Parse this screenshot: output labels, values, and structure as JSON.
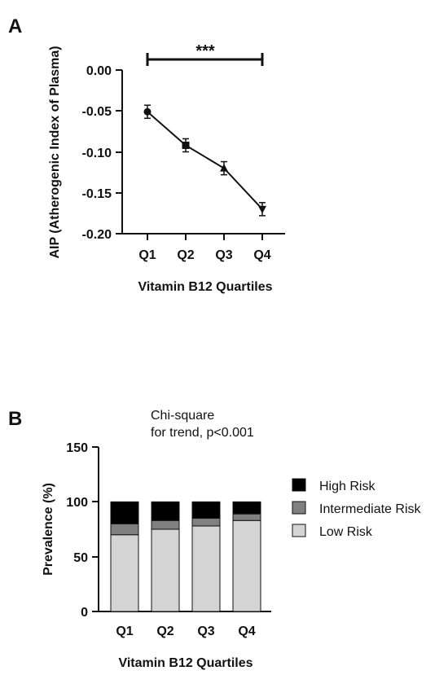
{
  "chart_data": [
    {
      "panel_label": "A",
      "type": "line",
      "categories": [
        "Q1",
        "Q2",
        "Q3",
        "Q4"
      ],
      "values": [
        -0.051,
        -0.092,
        -0.12,
        -0.17
      ],
      "errors": [
        0.008,
        0.008,
        0.008,
        0.008
      ],
      "markers": [
        "circle",
        "square",
        "triangle-up",
        "triangle-down"
      ],
      "xlabel": "Vitamin B12 Quartiles",
      "ylabel": "AIP (Atherogenic Index of Plasma)",
      "ylim": [
        -0.2,
        0.0
      ],
      "yticks": [
        "0.00",
        "-0.05",
        "-0.10",
        "-0.15",
        "-0.20"
      ],
      "significance": {
        "from": "Q1",
        "to": "Q4",
        "label": "***"
      },
      "grid": false
    },
    {
      "panel_label": "B",
      "type": "bar",
      "stacked": true,
      "categories": [
        "Q1",
        "Q2",
        "Q3",
        "Q4"
      ],
      "series": [
        {
          "name": "Low Risk",
          "color": "#d4d4d4",
          "values": [
            70,
            75,
            78,
            83
          ]
        },
        {
          "name": "Intermediate Risk",
          "color": "#808080",
          "values": [
            10,
            8,
            7,
            6
          ]
        },
        {
          "name": "High Risk",
          "color": "#000000",
          "values": [
            20,
            17,
            15,
            11
          ]
        }
      ],
      "legend_order": [
        "High Risk",
        "Intermediate Risk",
        "Low Risk"
      ],
      "legend_position": "right",
      "annotation_line1": "Chi-square",
      "annotation_line2": "for trend, p<0.001",
      "xlabel": "Vitamin B12 Quartiles",
      "ylabel": "Prevalence (%)",
      "ylim": [
        0,
        150
      ],
      "yticks": [
        "0",
        "50",
        "100",
        "150"
      ],
      "grid": false
    }
  ]
}
